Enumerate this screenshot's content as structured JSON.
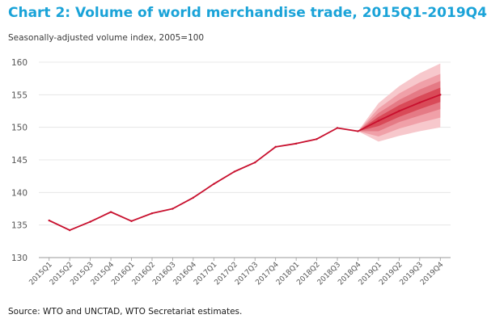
{
  "chart_data": {
    "type": "line",
    "title": "Chart 2: Volume of world merchandise trade, 2015Q1-2019Q4",
    "subtitle": "Seasonally-adjusted volume index, 2005=100",
    "source": "Source: WTO and UNCTAD, WTO Secretariat estimates.",
    "categories": [
      "2015Q1",
      "2015Q2",
      "2015Q3",
      "2015Q4",
      "2016Q1",
      "2016Q2",
      "2016Q3",
      "2016Q4",
      "2017Q1",
      "2017Q2",
      "2017Q3",
      "2017Q4",
      "2018Q1",
      "2018Q2",
      "2018Q3",
      "2018Q4",
      "2019Q1",
      "2019Q2",
      "2019Q3",
      "2019Q4"
    ],
    "yticks": [
      "160",
      "155",
      "150",
      "145",
      "140",
      "135",
      "130"
    ],
    "ylim": [
      130,
      160
    ],
    "grid": true,
    "series": [
      {
        "values": [
          135.7,
          134.2,
          135.5,
          137.0,
          135.6,
          136.8,
          137.5,
          139.2,
          141.3,
          143.2,
          144.6,
          147.0,
          147.5,
          148.2,
          149.9,
          149.4,
          151.0,
          152.5,
          153.8,
          155.0
        ],
        "color": "#c8102e"
      }
    ],
    "fan_bands": {
      "anchor_category": "2018Q4",
      "categories": [
        "2019Q1",
        "2019Q2",
        "2019Q3",
        "2019Q4"
      ],
      "colors": [
        "#f7c8cc",
        "#f0a0a8",
        "#e57a85",
        "#d94a58"
      ],
      "bands": [
        {
          "upper": [
            153.7,
            156.3,
            158.3,
            159.8
          ],
          "lower": [
            147.8,
            148.7,
            149.4,
            150.0
          ]
        },
        {
          "upper": [
            152.9,
            155.2,
            156.9,
            158.2
          ],
          "lower": [
            148.6,
            149.8,
            150.7,
            151.5
          ]
        },
        {
          "upper": [
            152.2,
            154.2,
            155.8,
            157.1
          ],
          "lower": [
            149.4,
            150.8,
            151.8,
            152.8
          ]
        },
        {
          "upper": [
            151.6,
            153.4,
            154.8,
            156.1
          ],
          "lower": [
            150.2,
            151.6,
            152.8,
            153.9
          ]
        }
      ]
    }
  }
}
